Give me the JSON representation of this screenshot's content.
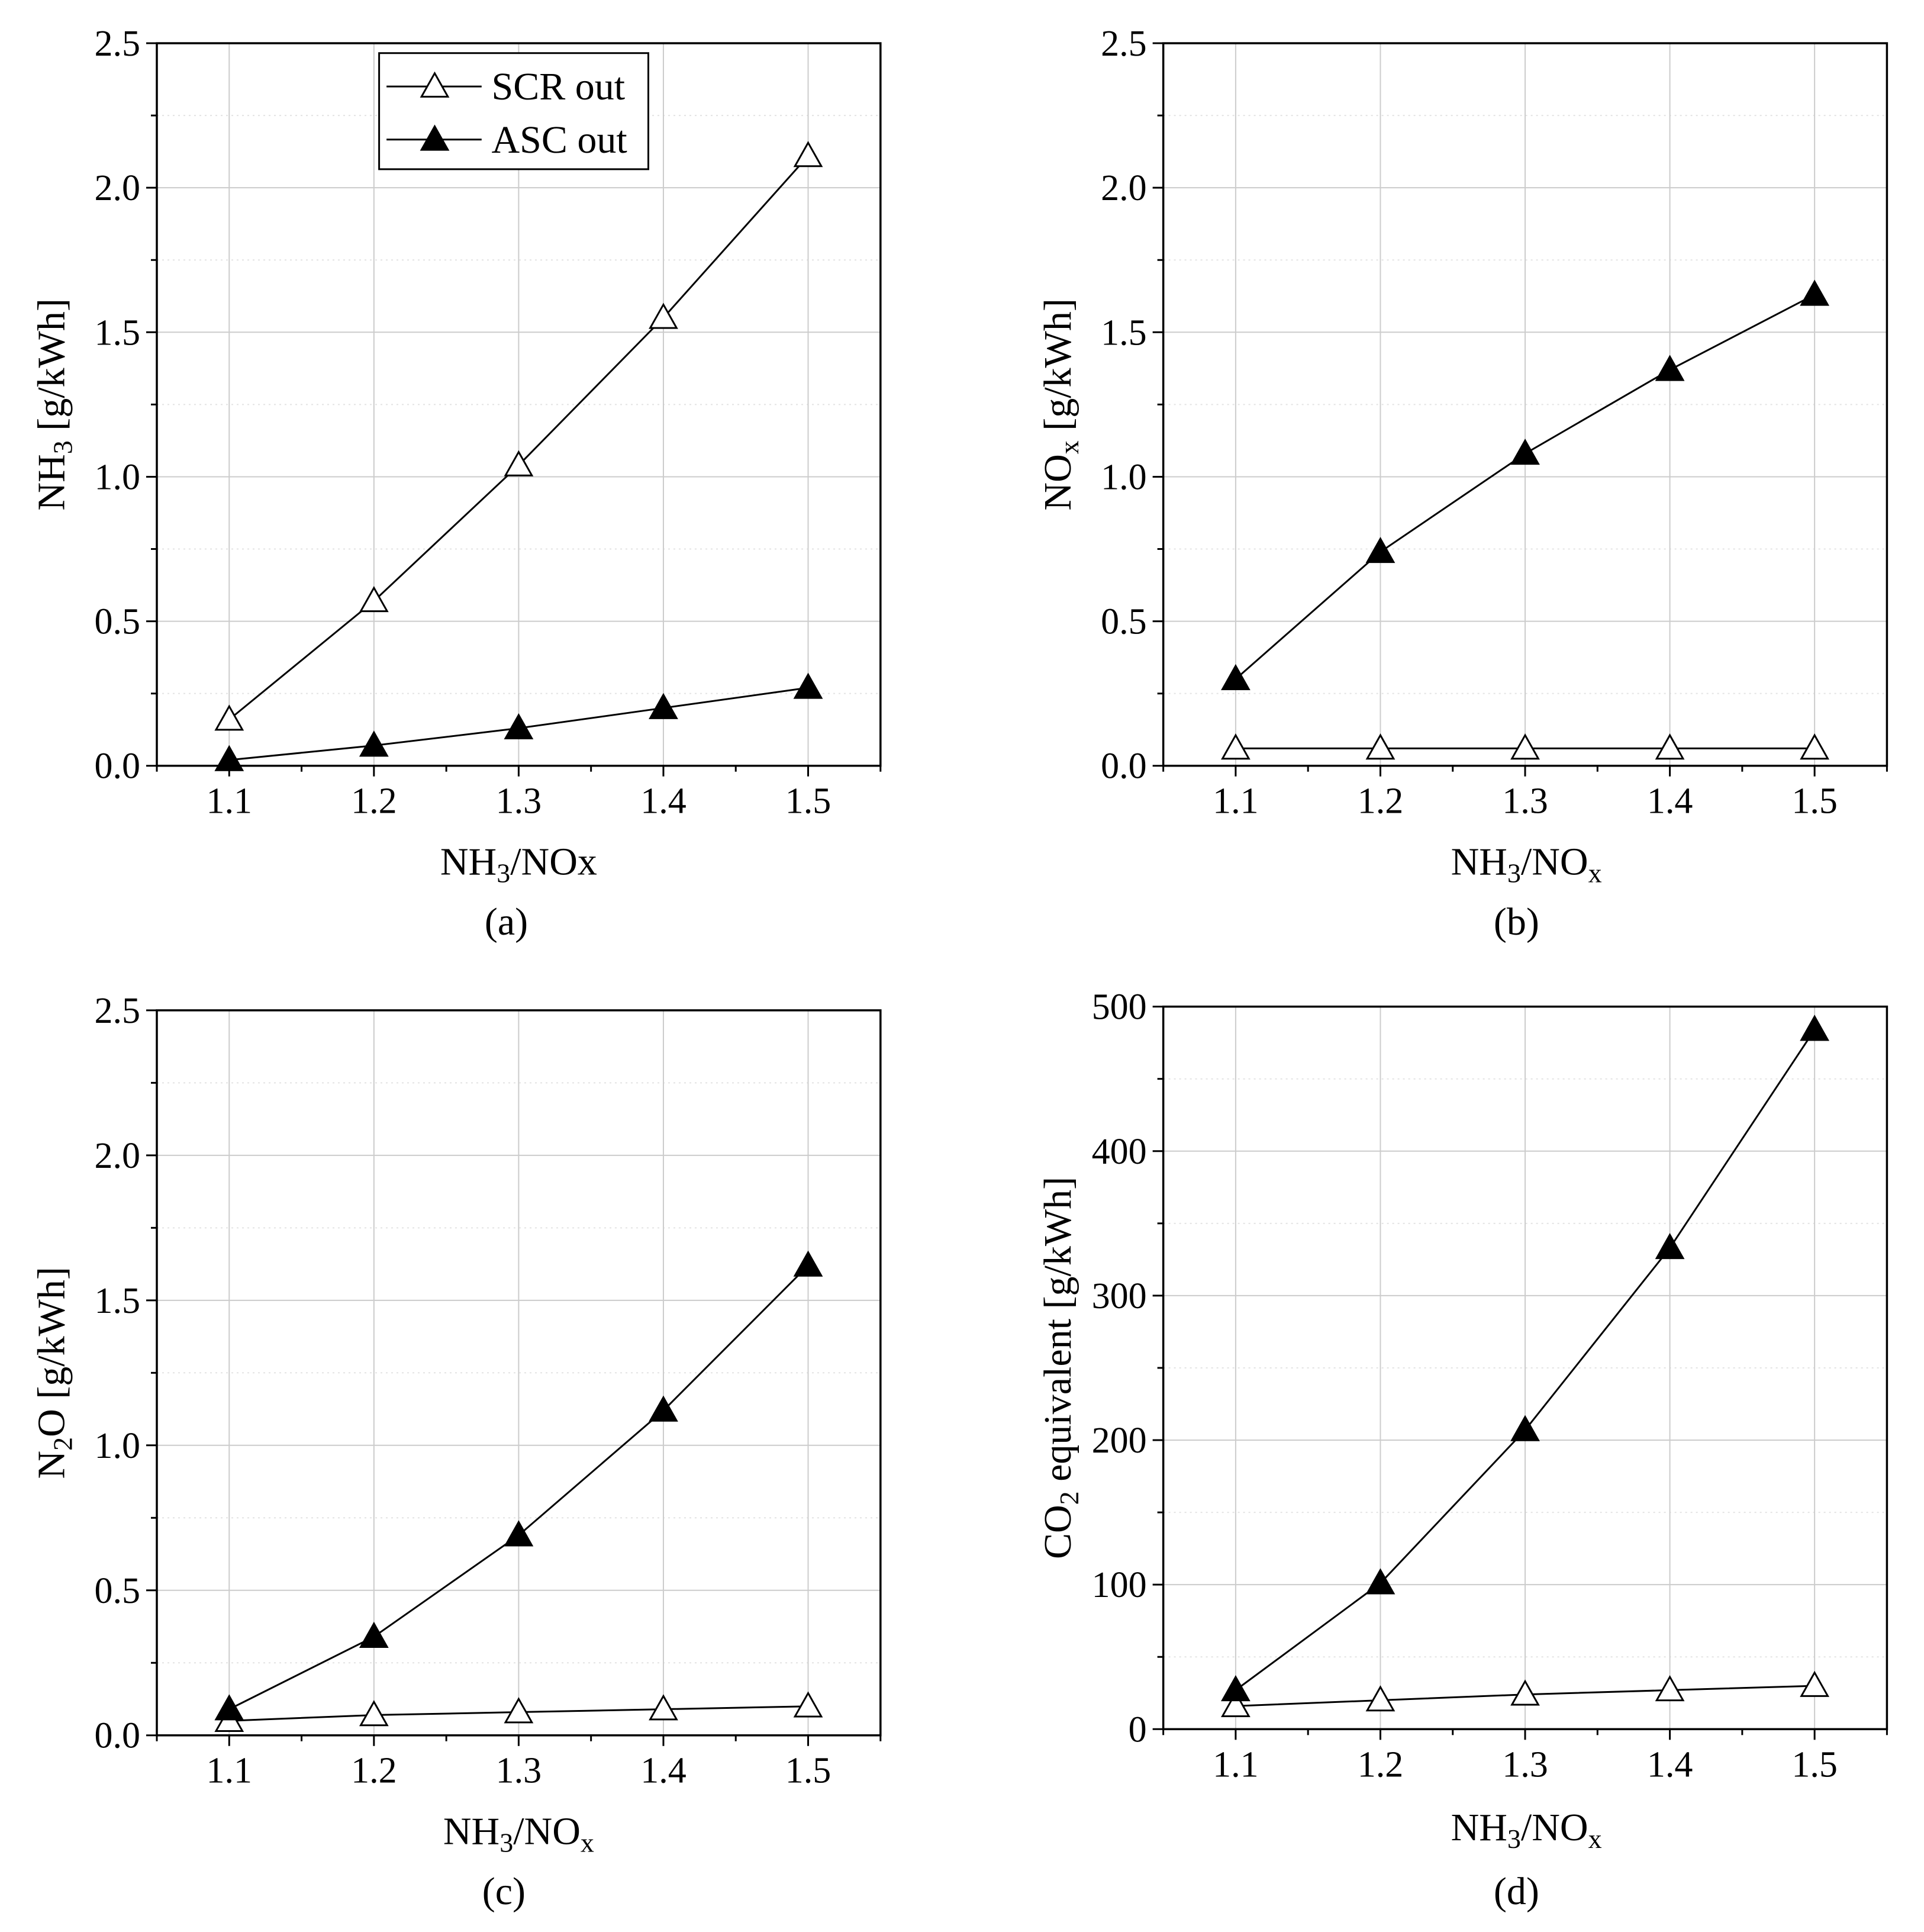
{
  "chart_data": [
    {
      "type": "line",
      "panel_label": "(a)",
      "xlabel": {
        "base": "NH",
        "sub1": "3",
        "mid": "/NOx",
        "sub2": ""
      },
      "ylabel": {
        "base": "NH",
        "sub": "3",
        "rest": " [g/kWh]"
      },
      "x": [
        1.1,
        1.2,
        1.3,
        1.4,
        1.5
      ],
      "xlim": [
        1.05,
        1.55
      ],
      "xticks": [
        "1.1",
        "1.2",
        "1.3",
        "1.4",
        "1.5"
      ],
      "ylim": [
        0,
        2.5
      ],
      "yticks": [
        "0.0",
        "0.5",
        "1.0",
        "1.5",
        "2.0",
        "2.5"
      ],
      "legend": {
        "position": "top-left",
        "entries": [
          "SCR out",
          "ASC out"
        ]
      },
      "series": [
        {
          "name": "SCR out",
          "marker": "open-triangle",
          "values": [
            0.16,
            0.57,
            1.04,
            1.55,
            2.11
          ]
        },
        {
          "name": "ASC out",
          "marker": "filled-triangle",
          "values": [
            0.02,
            0.07,
            0.13,
            0.2,
            0.27
          ]
        }
      ]
    },
    {
      "type": "line",
      "panel_label": "(b)",
      "xlabel": {
        "base": "NH",
        "sub1": "3",
        "mid": "/NO",
        "sub2": "x"
      },
      "ylabel": {
        "base": "NO",
        "sub": "x",
        "rest": " [g/kWh]"
      },
      "x": [
        1.1,
        1.2,
        1.3,
        1.4,
        1.5
      ],
      "xlim": [
        1.05,
        1.55
      ],
      "xticks": [
        "1.1",
        "1.2",
        "1.3",
        "1.4",
        "1.5"
      ],
      "ylim": [
        0,
        2.5
      ],
      "yticks": [
        "0.0",
        "0.5",
        "1.0",
        "1.5",
        "2.0",
        "2.5"
      ],
      "series": [
        {
          "name": "SCR out",
          "marker": "open-triangle",
          "values": [
            0.06,
            0.06,
            0.06,
            0.06,
            0.06
          ]
        },
        {
          "name": "ASC out",
          "marker": "filled-triangle",
          "values": [
            0.3,
            0.74,
            1.08,
            1.37,
            1.63
          ]
        }
      ]
    },
    {
      "type": "line",
      "panel_label": "(c)",
      "xlabel": {
        "base": "NH",
        "sub1": "3",
        "mid": "/NO",
        "sub2": "x"
      },
      "ylabel": {
        "base": "N",
        "sub": "2",
        "rest": "O [g/kWh]"
      },
      "x": [
        1.1,
        1.2,
        1.3,
        1.4,
        1.5
      ],
      "xlim": [
        1.05,
        1.55
      ],
      "xticks": [
        "1.1",
        "1.2",
        "1.3",
        "1.4",
        "1.5"
      ],
      "ylim": [
        0,
        2.5
      ],
      "yticks": [
        "0.0",
        "0.5",
        "1.0",
        "1.5",
        "2.0",
        "2.5"
      ],
      "series": [
        {
          "name": "SCR out",
          "marker": "open-triangle",
          "values": [
            0.05,
            0.07,
            0.08,
            0.09,
            0.1
          ]
        },
        {
          "name": "ASC out",
          "marker": "filled-triangle",
          "values": [
            0.09,
            0.34,
            0.69,
            1.12,
            1.62
          ]
        }
      ]
    },
    {
      "type": "line",
      "panel_label": "(d)",
      "xlabel": {
        "base": "NH",
        "sub1": "3",
        "mid": "/NO",
        "sub2": "x"
      },
      "ylabel": {
        "base": "CO",
        "sub": "2",
        "rest": " equivalent [g/kWh]"
      },
      "x": [
        1.1,
        1.2,
        1.3,
        1.4,
        1.5
      ],
      "xlim": [
        1.05,
        1.55
      ],
      "xticks": [
        "1.1",
        "1.2",
        "1.3",
        "1.4",
        "1.5"
      ],
      "ylim": [
        0,
        500
      ],
      "yticks": [
        "0",
        "100",
        "200",
        "300",
        "400",
        "500"
      ],
      "series": [
        {
          "name": "SCR out",
          "marker": "open-triangle",
          "values": [
            16,
            20,
            24,
            27,
            30
          ]
        },
        {
          "name": "ASC out",
          "marker": "filled-triangle",
          "values": [
            27,
            101,
            207,
            333,
            484
          ]
        }
      ]
    }
  ]
}
